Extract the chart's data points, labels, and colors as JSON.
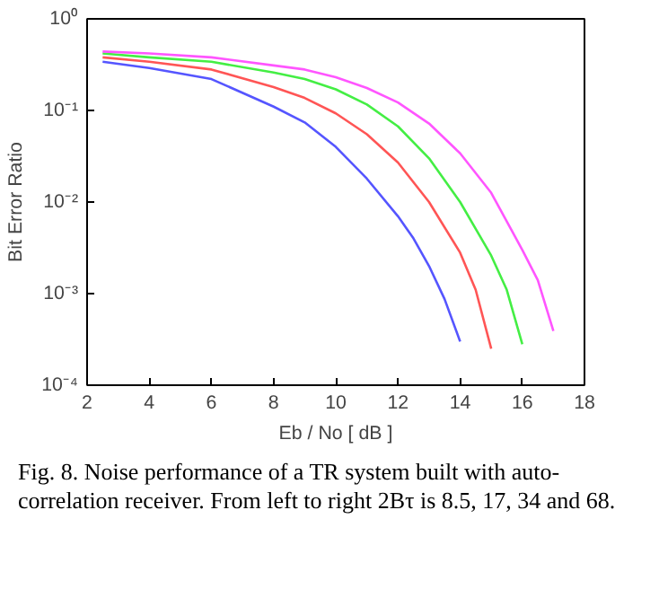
{
  "chart_data": {
    "type": "line",
    "xlabel": "Eb / No [ dB ]",
    "ylabel": "Bit Error Ratio",
    "log": "y",
    "grid": false,
    "line_style": "solid",
    "marker": "none",
    "xlim": [
      2,
      18
    ],
    "xticks": [
      2,
      4,
      6,
      8,
      10,
      12,
      14,
      16,
      18
    ],
    "ylim": [
      0.0001,
      1
    ],
    "yticks": [
      {
        "value": 0.0001,
        "label": "10⁻⁴"
      },
      {
        "value": 0.001,
        "label": "10⁻³"
      },
      {
        "value": 0.01,
        "label": "10⁻²"
      },
      {
        "value": 0.1,
        "label": "10⁻¹"
      },
      {
        "value": 1,
        "label": "10⁰"
      }
    ],
    "series": [
      {
        "color": "#5555ff",
        "x": [
          2.5,
          4,
          6,
          8,
          9,
          10,
          11,
          12,
          12.5,
          13,
          13.5,
          14
        ],
        "values": [
          0.34,
          0.29,
          0.22,
          0.11,
          0.074,
          0.04,
          0.018,
          0.007,
          0.004,
          0.002,
          0.00087,
          0.0003
        ]
      },
      {
        "color": "#ff5555",
        "x": [
          2.5,
          4,
          6,
          8,
          9,
          10,
          11,
          12,
          13,
          14,
          14.5,
          15
        ],
        "values": [
          0.38,
          0.34,
          0.28,
          0.18,
          0.137,
          0.093,
          0.055,
          0.027,
          0.01,
          0.0028,
          0.0011,
          0.00025
        ]
      },
      {
        "color": "#44ee44",
        "x": [
          2.5,
          4,
          6,
          8,
          9,
          10,
          11,
          12,
          13,
          14,
          15,
          15.5,
          16
        ],
        "values": [
          0.42,
          0.38,
          0.34,
          0.26,
          0.22,
          0.17,
          0.116,
          0.067,
          0.03,
          0.01,
          0.0026,
          0.0011,
          0.00028
        ]
      },
      {
        "color": "#ff55ff",
        "x": [
          2.5,
          4,
          6,
          8,
          9,
          10,
          11,
          12,
          13,
          14,
          15,
          16,
          16.5,
          17
        ],
        "values": [
          0.44,
          0.42,
          0.38,
          0.31,
          0.28,
          0.23,
          0.176,
          0.122,
          0.072,
          0.034,
          0.0126,
          0.003,
          0.0014,
          0.00039
        ]
      }
    ],
    "annotations": [
      "Fig. 8. Noise performance of a TR system built with auto-correlation receiver. From left to right 2Bτ is 8.5, 17, 34 and 68."
    ]
  }
}
